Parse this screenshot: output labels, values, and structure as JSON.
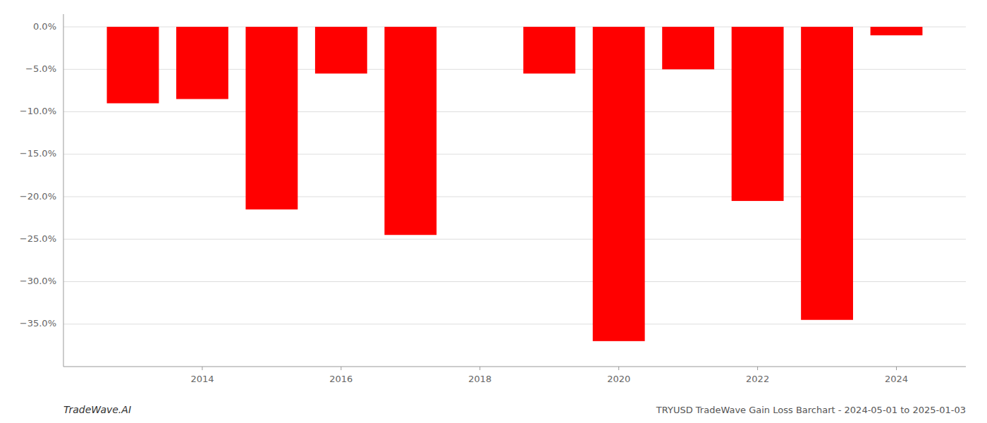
{
  "chart_data": {
    "type": "bar",
    "title": "TRYUSD TradeWave Gain Loss Barchart - 2024-05-01 to 2025-01-03",
    "annotations": [
      "TradeWave.AI"
    ],
    "x": [
      2013,
      2014,
      2015,
      2016,
      2017,
      2018,
      2019,
      2020,
      2021,
      2022,
      2023,
      2024
    ],
    "values": [
      -9.0,
      -8.5,
      -21.5,
      -5.5,
      -24.5,
      0.0,
      -5.5,
      -37.0,
      -5.0,
      -20.5,
      -34.5,
      -1.0
    ],
    "color": "#ff0000",
    "xlim": [
      2012,
      2025
    ],
    "xticks": [
      2014,
      2016,
      2018,
      2020,
      2022,
      2024
    ],
    "ylim": [
      -40,
      1.5
    ],
    "yticks": [
      {
        "value": 0.0,
        "label": "0.0%"
      },
      {
        "value": -5.0,
        "label": "−5.0%"
      },
      {
        "value": -10.0,
        "label": "−10.0%"
      },
      {
        "value": -15.0,
        "label": "−15.0%"
      },
      {
        "value": -20.0,
        "label": "−20.0%"
      },
      {
        "value": -25.0,
        "label": "−25.0%"
      },
      {
        "value": -30.0,
        "label": "−30.0%"
      },
      {
        "value": -35.0,
        "label": "−35.0%"
      }
    ],
    "grid": true
  }
}
